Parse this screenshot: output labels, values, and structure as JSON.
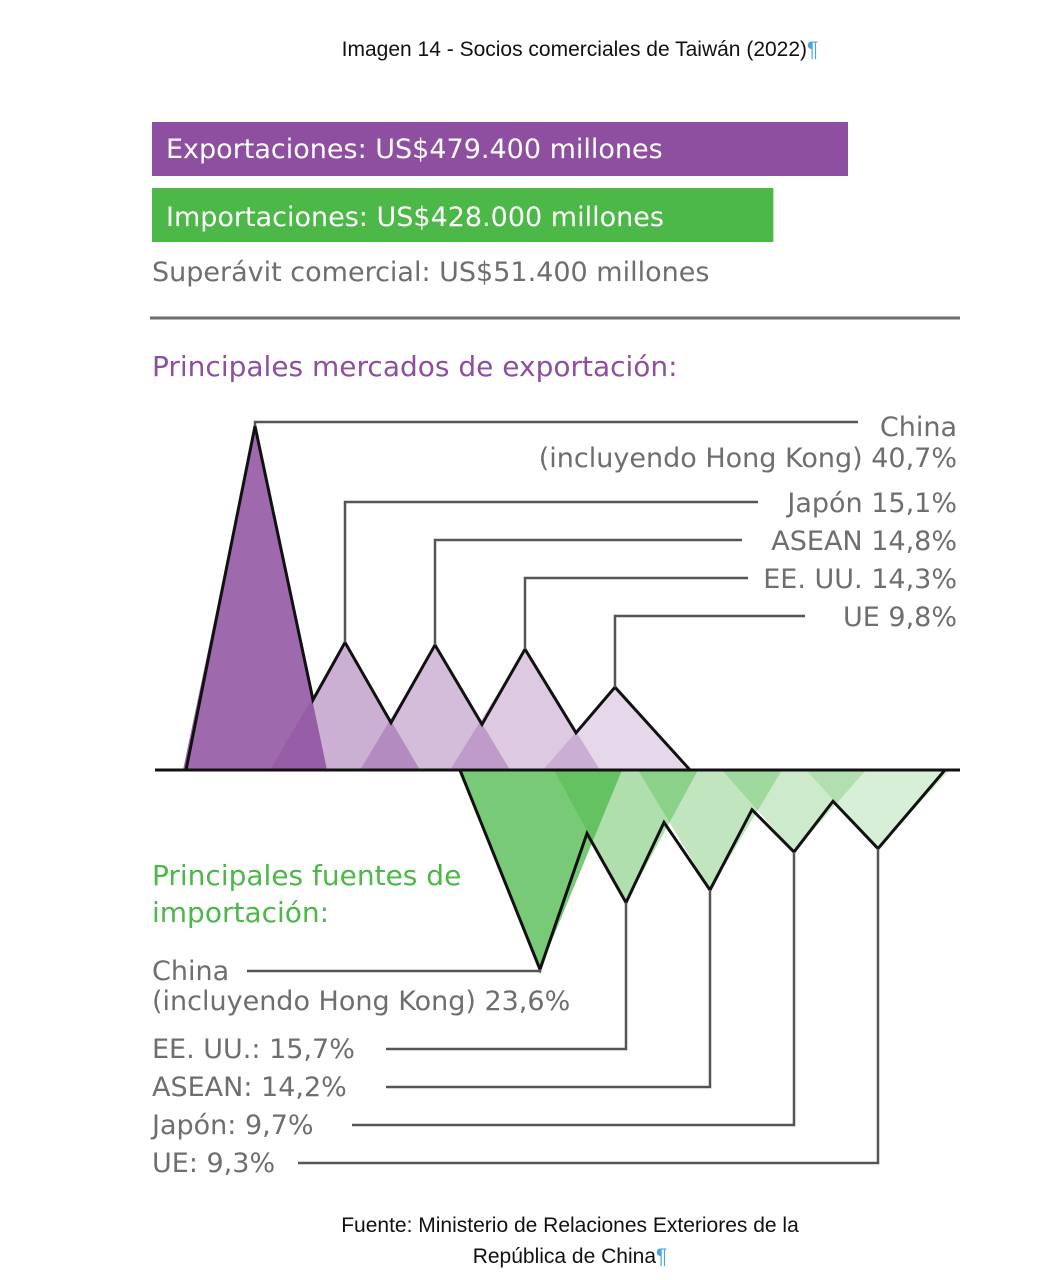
{
  "figure": {
    "title": "Imagen 14 - Socios comerciales de Taiwán (2022)",
    "source_line1": "Fuente: Ministerio de Relaciones Exteriores de la",
    "source_line2": "República de China"
  },
  "summary": {
    "exports_label": "Exportaciones: US$479.400 millones",
    "imports_label": "Importaciones: US$428.000 millones",
    "surplus_label": "Superávit comercial: US$51.400 millones",
    "exports_value_musd": 479400,
    "imports_value_musd": 428000,
    "surplus_value_musd": 51400
  },
  "colors": {
    "exports": "#8e4fa0",
    "imports": "#4cb848",
    "text_gray": "#6e6e6e"
  },
  "chart_data": {
    "type": "area",
    "unit": "%",
    "sections": {
      "exports_title": "Principales mercados de exportación:",
      "imports_title_line1": "Principales fuentes de",
      "imports_title_line2": "importación:"
    },
    "exports": [
      {
        "partner": "China",
        "label_line1": "China",
        "label_line2": "(incluyendo Hong Kong) 40,7%",
        "value": 40.7
      },
      {
        "partner": "Japón",
        "label": "Japón 15,1%",
        "value": 15.1
      },
      {
        "partner": "ASEAN",
        "label": "ASEAN 14,8%",
        "value": 14.8
      },
      {
        "partner": "EE. UU.",
        "label": "EE. UU. 14,3%",
        "value": 14.3
      },
      {
        "partner": "UE",
        "label": "UE   9,8%",
        "value": 9.8
      }
    ],
    "imports": [
      {
        "partner": "China",
        "label_line1": "China",
        "label_line2": "(incluyendo Hong Kong) 23,6%",
        "value": 23.6
      },
      {
        "partner": "EE. UU.",
        "label": "EE. UU.: 15,7%",
        "value": 15.7
      },
      {
        "partner": "ASEAN",
        "label": "ASEAN: 14,2%",
        "value": 14.2
      },
      {
        "partner": "Japón",
        "label": "Japón: 9,7%",
        "value": 9.7
      },
      {
        "partner": "UE",
        "label": "UE: 9,3%",
        "value": 9.3
      }
    ]
  }
}
